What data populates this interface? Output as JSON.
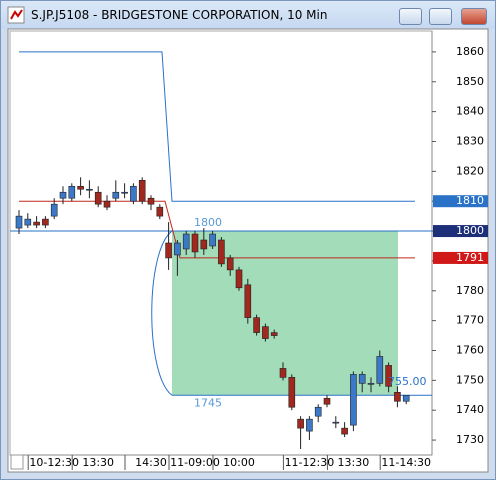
{
  "window_title": "S.JP.J5108 - BRIDGESTONE CORPORATION, 10 Min",
  "chart_data": {
    "type": "candlestick",
    "categories": [
      null,
      null,
      null,
      null,
      "10-12:30",
      null,
      null,
      null,
      null,
      "13:30",
      null,
      null,
      null,
      null,
      null,
      "14:30",
      null,
      null,
      null,
      null,
      "11-09:00",
      null,
      null,
      null,
      null,
      "10:00",
      null,
      null,
      null,
      null,
      null,
      null,
      null,
      "11-12:30",
      null,
      null,
      null,
      null,
      "13:30",
      null,
      null,
      null,
      null,
      null,
      "11-14:30"
    ],
    "ohlc": [
      [
        1801,
        1807,
        1799,
        1805
      ],
      [
        1802,
        1806,
        1801,
        1804
      ],
      [
        1803,
        1805,
        1801,
        1802
      ],
      [
        1804,
        1805,
        1801,
        1802
      ],
      [
        1805,
        1811,
        1804,
        1809
      ],
      [
        1811,
        1815,
        1809,
        1813
      ],
      [
        1811,
        1816,
        1810,
        1815
      ],
      [
        1815,
        1818,
        1812,
        1814
      ],
      [
        1814,
        1817,
        1811,
        1814
      ],
      [
        1813,
        1815,
        1808,
        1809
      ],
      [
        1810,
        1812,
        1807,
        1808
      ],
      [
        1811,
        1817,
        1810,
        1813
      ],
      [
        1813,
        1816,
        1811,
        1813
      ],
      [
        1810,
        1816,
        1809,
        1815
      ],
      [
        1817,
        1818,
        1809,
        1810
      ],
      [
        1811,
        1812,
        1807,
        1809
      ],
      [
        1808,
        1809,
        1804,
        1805
      ],
      [
        1796,
        1803,
        1787,
        1791
      ],
      [
        1792,
        1797,
        1785,
        1796
      ],
      [
        1794,
        1800,
        1792,
        1799
      ],
      [
        1799,
        1800,
        1791,
        1793
      ],
      [
        1797,
        1801,
        1792,
        1794
      ],
      [
        1795,
        1800,
        1794,
        1799
      ],
      [
        1797,
        1798,
        1788,
        1789
      ],
      [
        1791,
        1792,
        1785,
        1787
      ],
      [
        1787,
        1788,
        1780,
        1781
      ],
      [
        1782,
        1784,
        1769,
        1771
      ],
      [
        1771,
        1772,
        1765,
        1766
      ],
      [
        1768,
        1769,
        1763,
        1764
      ],
      [
        1766,
        1767,
        1764,
        1765
      ],
      [
        1754,
        1756,
        1750,
        1751
      ],
      [
        1751,
        1752,
        1740,
        1741
      ],
      [
        1737,
        1738,
        1727,
        1734
      ],
      [
        1733,
        1738,
        1730,
        1737
      ],
      [
        1738,
        1742,
        1736,
        1741
      ],
      [
        1744,
        1745,
        1741,
        1742
      ],
      [
        1736,
        1738,
        1734,
        1736
      ],
      [
        1734,
        1736,
        1731,
        1732
      ],
      [
        1735,
        1753,
        1733,
        1752
      ],
      [
        1749,
        1753,
        1746,
        1752
      ],
      [
        1749,
        1751,
        1746,
        1749
      ],
      [
        1749,
        1760,
        1748,
        1758
      ],
      [
        1755,
        1756,
        1746,
        1748
      ],
      [
        1746,
        1748,
        1741,
        1743
      ],
      [
        1743,
        1745,
        1742,
        1745
      ]
    ],
    "up_color": "#3c78c8",
    "down_color": "#a0281e",
    "ylim": [
      1725,
      1867
    ],
    "yticks": [
      1730,
      1740,
      1750,
      1760,
      1770,
      1780,
      1790,
      1800,
      1810,
      1820,
      1830,
      1840,
      1850,
      1860
    ],
    "step_lines": [
      {
        "color": "#2a72c8",
        "values": [
          1860,
          1810
        ]
      },
      {
        "color": "#c0281e",
        "values": [
          1810,
          1791
        ]
      }
    ],
    "price_tags": [
      {
        "value": 1810,
        "color": "#2a72c8"
      },
      {
        "value": 1800,
        "color": "#1e2f7a"
      },
      {
        "value": 1791,
        "color": "#d01818"
      }
    ],
    "level_line": 1800,
    "zone": {
      "top": 1800,
      "bottom": 1745,
      "color": "#98d8b0"
    },
    "zone_top_label": "1800",
    "zone_bottom_label": "1745",
    "price_note": "755.00"
  }
}
